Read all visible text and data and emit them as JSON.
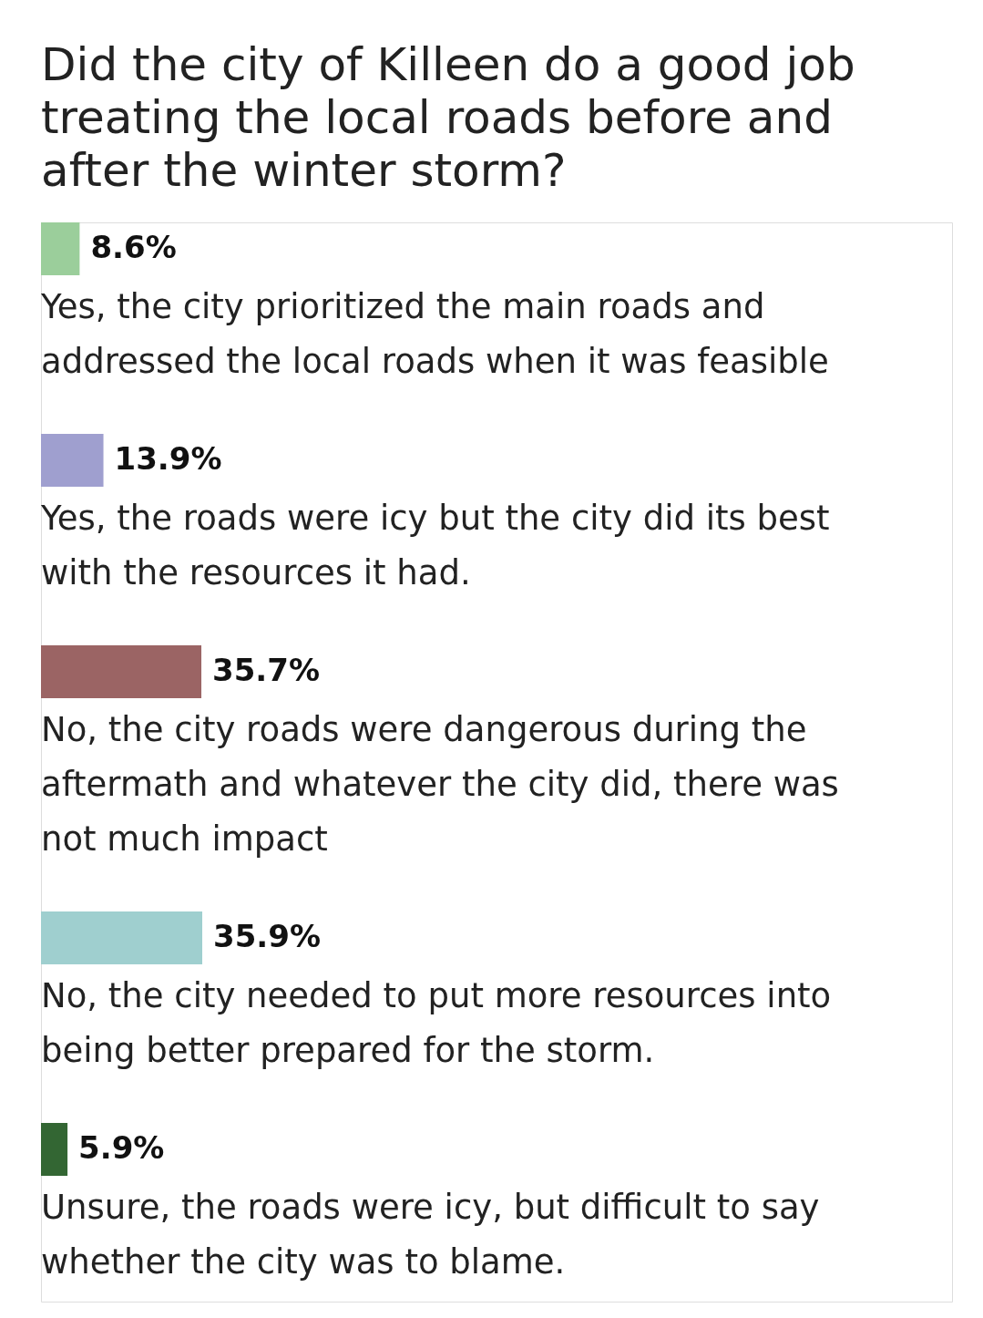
{
  "chart_data": {
    "type": "bar",
    "orientation": "horizontal",
    "tick_labels": "y",
    "title": "Did the city of Killeen do a good job treating the local roads before and after the winter storm?",
    "categories": [
      "Yes, the city prioritized the main roads and addressed the local roads when it was feasible",
      "Yes, the roads were icy but the city did its best with the resources it had.",
      "No, the city roads were dangerous during the aftermath and whatever the city did, there was not much impact",
      "No, the city needed to put more resources into being better prepared for the storm.",
      "Unsure, the roads were icy, but difficult to say whether the city was to blame."
    ],
    "values": [
      8.6,
      13.9,
      35.7,
      35.9,
      5.9
    ],
    "value_labels": [
      "8.6%",
      "13.9%",
      "35.7%",
      "35.9%",
      "5.9%"
    ],
    "colors": [
      "#9bce9b",
      "#9f9fcf",
      "#9b6464",
      "#9fcfcf",
      "#336633"
    ]
  }
}
